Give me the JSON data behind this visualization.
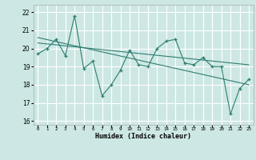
{
  "xlabel": "Humidex (Indice chaleur)",
  "ylabel": "",
  "bg_color": "#cde8e4",
  "grid_color": "#ffffff",
  "line_color": "#2e7d72",
  "xlim": [
    -0.5,
    23.5
  ],
  "ylim": [
    15.8,
    22.4
  ],
  "yticks": [
    16,
    17,
    18,
    19,
    20,
    21,
    22
  ],
  "xticks": [
    0,
    1,
    2,
    3,
    4,
    5,
    6,
    7,
    8,
    9,
    10,
    11,
    12,
    13,
    14,
    15,
    16,
    17,
    18,
    19,
    20,
    21,
    22,
    23
  ],
  "data_x": [
    0,
    1,
    2,
    3,
    4,
    5,
    6,
    7,
    8,
    9,
    10,
    11,
    12,
    13,
    14,
    15,
    16,
    17,
    18,
    19,
    20,
    21,
    22,
    23
  ],
  "data_y": [
    19.7,
    20.0,
    20.5,
    19.6,
    21.8,
    18.9,
    19.3,
    17.4,
    18.0,
    18.8,
    19.9,
    19.1,
    19.0,
    20.0,
    20.4,
    20.5,
    19.2,
    19.1,
    19.5,
    19.0,
    19.0,
    16.4,
    17.8,
    18.3
  ],
  "trend1_x": [
    0,
    23
  ],
  "trend1_y": [
    20.3,
    19.1
  ],
  "trend2_x": [
    0,
    23
  ],
  "trend2_y": [
    20.6,
    18.0
  ]
}
